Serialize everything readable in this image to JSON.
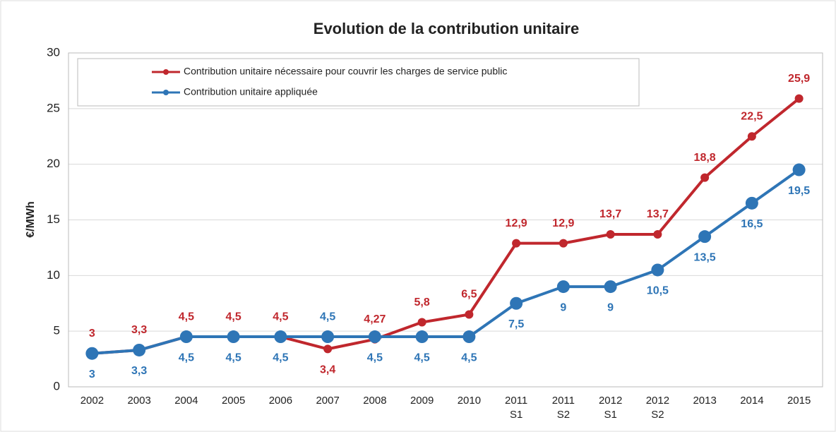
{
  "chart_data": {
    "type": "line",
    "title": "Evolution de la contribution unitaire",
    "y_label": "€/MWh",
    "categories": [
      "2002",
      "2003",
      "2004",
      "2005",
      "2006",
      "2007",
      "2008",
      "2009",
      "2010",
      "2011 S1",
      "2011 S2",
      "2012 S1",
      "2012 S2",
      "2013",
      "2014",
      "2015"
    ],
    "series": [
      {
        "name": "Contribution unitaire nécessaire pour couvrir les charges de service public",
        "color": "#c0272d",
        "values": [
          3,
          3.3,
          4.5,
          4.5,
          4.5,
          3.4,
          4.27,
          5.8,
          6.5,
          12.9,
          12.9,
          13.7,
          13.7,
          18.8,
          22.5,
          25.9
        ],
        "value_labels": [
          "3",
          "3,3",
          "4,5",
          "4,5",
          "4,5",
          "3,4",
          "4,27",
          "5,8",
          "6,5",
          "12,9",
          "12,9",
          "13,7",
          "13,7",
          "18,8",
          "22,5",
          "25,9"
        ]
      },
      {
        "name": "Contribution unitaire appliquée",
        "color": "#2e75b6",
        "values": [
          3,
          3.3,
          4.5,
          4.5,
          4.5,
          4.5,
          4.5,
          4.5,
          4.5,
          7.5,
          9,
          9,
          10.5,
          13.5,
          16.5,
          19.5
        ],
        "value_labels": [
          "3",
          "3,3",
          "4,5",
          "4,5",
          "4,5",
          "4,5",
          "4,5",
          "4,5",
          "4,5",
          "7,5",
          "9",
          "9",
          "10,5",
          "13,5",
          "16,5",
          "19,5"
        ]
      }
    ],
    "ylim": [
      0,
      30
    ],
    "yticks": [
      0,
      5,
      10,
      15,
      20,
      25,
      30
    ],
    "grid": true,
    "legend": "top-left"
  }
}
